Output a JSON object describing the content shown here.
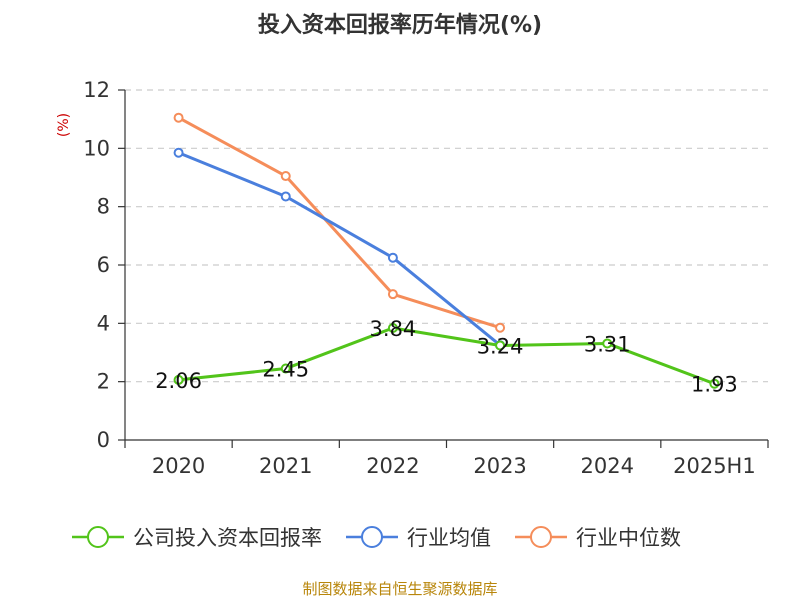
{
  "chart_data": {
    "type": "line",
    "title": "投入资本回报率历年情况(%)",
    "ylabel": "(%)",
    "xlabel": "",
    "categories": [
      "2020",
      "2021",
      "2022",
      "2023",
      "2024",
      "2025H1"
    ],
    "ylim": [
      0,
      12
    ],
    "yticks": [
      0,
      2,
      4,
      6,
      8,
      10,
      12
    ],
    "grid": "horizontal-dashed",
    "legend_position": "bottom",
    "series": [
      {
        "name": "公司投入资本回报率",
        "color": "#52c41a",
        "values": [
          2.06,
          2.45,
          3.84,
          3.24,
          3.31,
          1.93
        ],
        "labels": [
          "2.06",
          "2.45",
          "3.84",
          "3.24",
          "3.31",
          "1.93"
        ]
      },
      {
        "name": "行业均值",
        "color": "#4a7fdd",
        "values": [
          9.85,
          8.35,
          6.25,
          3.25,
          null,
          null
        ]
      },
      {
        "name": "行业中位数",
        "color": "#f58d5a",
        "values": [
          11.05,
          9.05,
          5.0,
          3.85,
          null,
          null
        ]
      }
    ],
    "source": "制图数据来自恒生聚源数据库"
  }
}
